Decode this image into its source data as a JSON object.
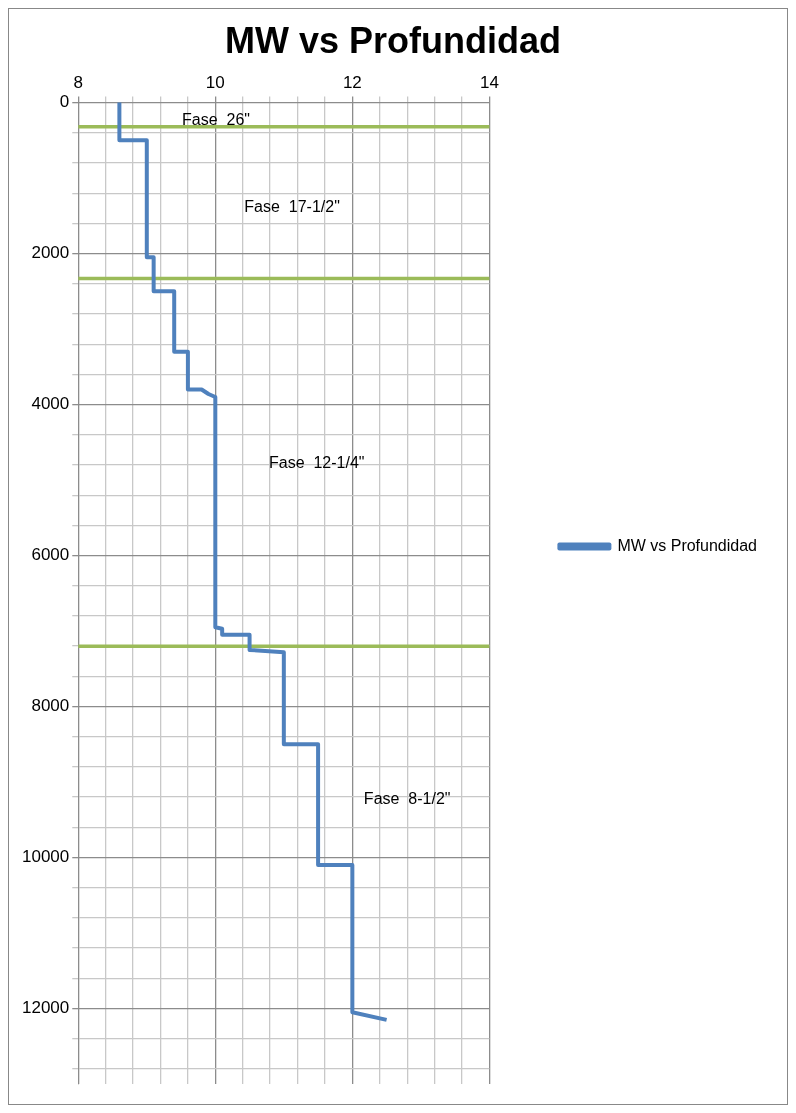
{
  "chart_data": {
    "type": "line",
    "title": "MW vs Profundidad",
    "legend": "right",
    "grid": true,
    "marker": "none",
    "line_style": "solid",
    "xlim": [
      8,
      14
    ],
    "ylim": [
      13000,
      0
    ],
    "xticks": [
      8,
      {
        "value": 8.4,
        "label": null
      },
      {
        "value": 8.8,
        "label": null
      },
      {
        "value": 9.2,
        "label": null
      },
      {
        "value": 9.6,
        "label": null
      },
      10,
      {
        "value": 10.4,
        "label": null
      },
      {
        "value": 10.8,
        "label": null
      },
      {
        "value": 11.2,
        "label": null
      },
      {
        "value": 11.6,
        "label": null
      },
      12,
      {
        "value": 12.4,
        "label": null
      },
      {
        "value": 12.8,
        "label": null
      },
      {
        "value": 13.2,
        "label": null
      },
      {
        "value": 13.6,
        "label": null
      },
      14
    ],
    "yticks": [
      0,
      {
        "value": 400,
        "label": null
      },
      {
        "value": 800,
        "label": null
      },
      {
        "value": 1200,
        "label": null
      },
      {
        "value": 1600,
        "label": null
      },
      2000,
      {
        "value": 2400,
        "label": null
      },
      {
        "value": 2800,
        "label": null
      },
      {
        "value": 3200,
        "label": null
      },
      {
        "value": 3600,
        "label": null
      },
      4000,
      {
        "value": 4400,
        "label": null
      },
      {
        "value": 4800,
        "label": null
      },
      {
        "value": 5200,
        "label": null
      },
      {
        "value": 5600,
        "label": null
      },
      6000,
      {
        "value": 6400,
        "label": null
      },
      {
        "value": 6800,
        "label": null
      },
      {
        "value": 7200,
        "label": null
      },
      {
        "value": 7600,
        "label": null
      },
      8000,
      {
        "value": 8400,
        "label": null
      },
      {
        "value": 8800,
        "label": null
      },
      {
        "value": 9200,
        "label": null
      },
      {
        "value": 9600,
        "label": null
      },
      10000,
      {
        "value": 10400,
        "label": null
      },
      {
        "value": 10800,
        "label": null
      },
      {
        "value": 11200,
        "label": null
      },
      {
        "value": 11600,
        "label": null
      },
      12000,
      {
        "value": 12400,
        "label": null
      },
      {
        "value": 12800,
        "label": null
      }
    ],
    "series": [
      {
        "name": "MW vs Profundidad",
        "color": "#4f81bd",
        "x": [
          8.6,
          8.6,
          9.0,
          9.0,
          9.1,
          9.1,
          9.4,
          9.4,
          9.6,
          9.6,
          9.8,
          9.9,
          10,
          10,
          10.1,
          10.1,
          10.5,
          10.5,
          11,
          11,
          11.5,
          11.5,
          12,
          12,
          12.5
        ],
        "values": [
          0,
          500,
          500,
          2050,
          2050,
          2500,
          2500,
          3300,
          3300,
          3800,
          3800,
          3860,
          3900,
          6950,
          6970,
          7050,
          7050,
          7250,
          7280,
          8500,
          8500,
          10100,
          10100,
          12050,
          12150
        ]
      }
    ],
    "ref_lines": [
      {
        "axis": "y",
        "value": 320,
        "color": "#9bbb59"
      },
      {
        "axis": "y",
        "value": 2330,
        "color": "#9bbb59"
      },
      {
        "axis": "y",
        "value": 7200,
        "color": "#9bbb59"
      }
    ],
    "annotations": [
      "Fase  26\"",
      "Fase  17-1/2\"",
      "Fase  12-1/4\"",
      "Fase  8-1/2\""
    ]
  }
}
